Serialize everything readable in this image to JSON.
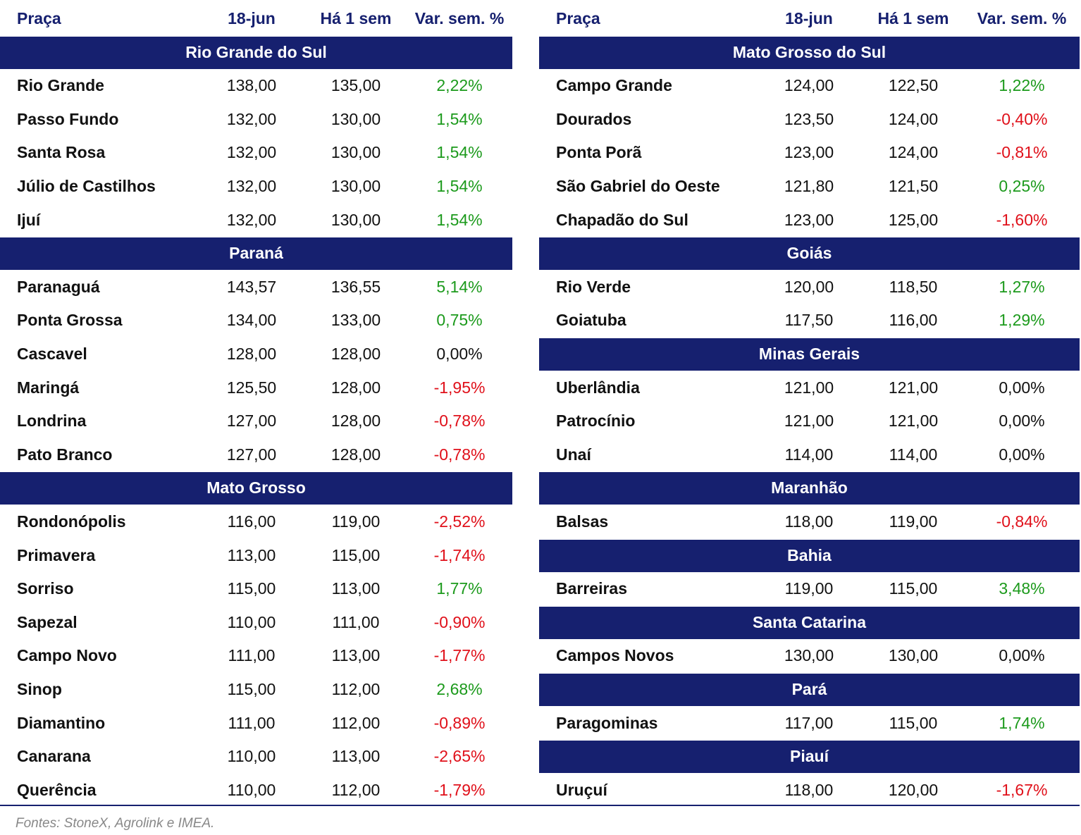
{
  "tables": [
    {
      "columns": [
        "Praça",
        "18-jun",
        "Há 1 sem",
        "Var. sem. %"
      ],
      "groups": [
        {
          "name": "Rio Grande do Sul",
          "rows": [
            [
              "Rio Grande",
              "138,00",
              "135,00",
              "2,22%"
            ],
            [
              "Passo Fundo",
              "132,00",
              "130,00",
              "1,54%"
            ],
            [
              "Santa Rosa",
              "132,00",
              "130,00",
              "1,54%"
            ],
            [
              "Júlio de Castilhos",
              "132,00",
              "130,00",
              "1,54%"
            ],
            [
              "Ijuí",
              "132,00",
              "130,00",
              "1,54%"
            ]
          ]
        },
        {
          "name": "Paraná",
          "rows": [
            [
              "Paranaguá",
              "143,57",
              "136,55",
              "5,14%"
            ],
            [
              "Ponta Grossa",
              "134,00",
              "133,00",
              "0,75%"
            ],
            [
              "Cascavel",
              "128,00",
              "128,00",
              "0,00%"
            ],
            [
              "Maringá",
              "125,50",
              "128,00",
              "-1,95%"
            ],
            [
              "Londrina",
              "127,00",
              "128,00",
              "-0,78%"
            ],
            [
              "Pato Branco",
              "127,00",
              "128,00",
              "-0,78%"
            ]
          ]
        },
        {
          "name": "Mato Grosso",
          "rows": [
            [
              "Rondonópolis",
              "116,00",
              "119,00",
              "-2,52%"
            ],
            [
              "Primavera",
              "113,00",
              "115,00",
              "-1,74%"
            ],
            [
              "Sorriso",
              "115,00",
              "113,00",
              "1,77%"
            ],
            [
              "Sapezal",
              "110,00",
              "111,00",
              "-0,90%"
            ],
            [
              "Campo Novo",
              "111,00",
              "113,00",
              "-1,77%"
            ],
            [
              "Sinop",
              "115,00",
              "112,00",
              "2,68%"
            ],
            [
              "Diamantino",
              "111,00",
              "112,00",
              "-0,89%"
            ],
            [
              "Canarana",
              "110,00",
              "113,00",
              "-2,65%"
            ],
            [
              "Querência",
              "110,00",
              "112,00",
              "-1,79%"
            ]
          ]
        }
      ]
    },
    {
      "columns": [
        "Praça",
        "18-jun",
        "Há 1 sem",
        "Var. sem. %"
      ],
      "groups": [
        {
          "name": "Mato Grosso do Sul",
          "rows": [
            [
              "Campo Grande",
              "124,00",
              "122,50",
              "1,22%"
            ],
            [
              "Dourados",
              "123,50",
              "124,00",
              "-0,40%"
            ],
            [
              "Ponta Porã",
              "123,00",
              "124,00",
              "-0,81%"
            ],
            [
              "São Gabriel do Oeste",
              "121,80",
              "121,50",
              "0,25%"
            ],
            [
              "Chapadão do Sul",
              "123,00",
              "125,00",
              "-1,60%"
            ]
          ]
        },
        {
          "name": "Goiás",
          "rows": [
            [
              "Rio Verde",
              "120,00",
              "118,50",
              "1,27%"
            ],
            [
              "Goiatuba",
              "117,50",
              "116,00",
              "1,29%"
            ]
          ]
        },
        {
          "name": "Minas Gerais",
          "rows": [
            [
              "Uberlândia",
              "121,00",
              "121,00",
              "0,00%"
            ],
            [
              "Patrocínio",
              "121,00",
              "121,00",
              "0,00%"
            ],
            [
              "Unaí",
              "114,00",
              "114,00",
              "0,00%"
            ]
          ]
        },
        {
          "name": "Maranhão",
          "rows": [
            [
              "Balsas",
              "118,00",
              "119,00",
              "-0,84%"
            ]
          ]
        },
        {
          "name": "Bahia",
          "rows": [
            [
              "Barreiras",
              "119,00",
              "115,00",
              "3,48%"
            ]
          ]
        },
        {
          "name": "Santa Catarina",
          "rows": [
            [
              "Campos Novos",
              "130,00",
              "130,00",
              "0,00%"
            ]
          ]
        },
        {
          "name": "Pará",
          "rows": [
            [
              "Paragominas",
              "117,00",
              "115,00",
              "1,74%"
            ]
          ]
        },
        {
          "name": "Piauí",
          "rows": [
            [
              "Uruçuí",
              "118,00",
              "120,00",
              "-1,67%"
            ]
          ]
        }
      ]
    }
  ],
  "footer": "Fontes: StoneX, Agrolink e IMEA."
}
